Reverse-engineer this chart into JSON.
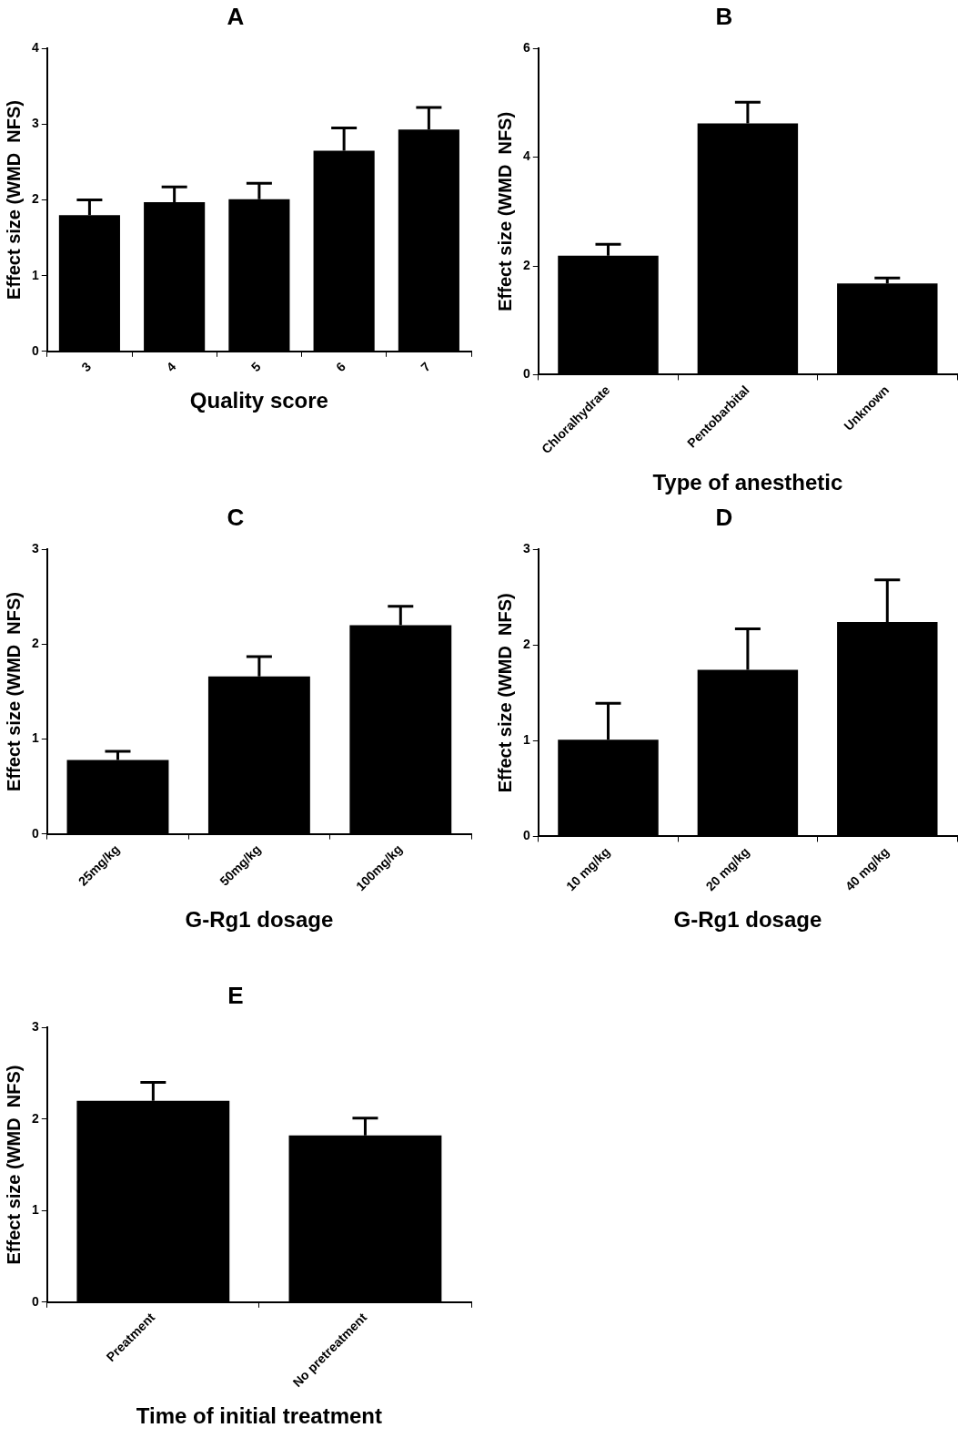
{
  "chart_data": [
    {
      "type": "bar",
      "title": "A",
      "xlabel": "Quality score",
      "ylabel": "Effect size (WMD  NFS)",
      "categories": [
        "3",
        "4",
        "5",
        "6",
        "7"
      ],
      "values": [
        1.8,
        1.97,
        2.01,
        2.65,
        2.93
      ],
      "errors": [
        [
          1.8,
          2.0
        ],
        [
          1.97,
          2.17
        ],
        [
          2.01,
          2.22
        ],
        [
          2.65,
          2.95
        ],
        [
          2.93,
          3.22
        ]
      ],
      "color": "#000000",
      "ylim": [
        0,
        4
      ],
      "yticks": [
        0,
        1,
        2,
        3,
        4
      ],
      "grid": false
    },
    {
      "type": "bar",
      "title": "B",
      "xlabel": "Type of anesthetic",
      "ylabel": "Effect size (WMD  NFS)",
      "categories": [
        "Chloralhydrate",
        "Pentobarbital",
        "Unknown"
      ],
      "values": [
        2.19,
        4.62,
        1.68
      ],
      "errors": [
        [
          2.19,
          2.4
        ],
        [
          4.62,
          5.01
        ],
        [
          1.68,
          1.78
        ]
      ],
      "color": "#000000",
      "ylim": [
        0,
        6
      ],
      "yticks": [
        0,
        2,
        4,
        6
      ],
      "grid": false
    },
    {
      "type": "bar",
      "title": "C",
      "xlabel": "G-Rg1 dosage",
      "ylabel": "Effect size (WMD  NFS)",
      "categories": [
        "25mg/kg",
        "50mg/kg",
        "100mg/kg"
      ],
      "values": [
        0.78,
        1.66,
        2.2
      ],
      "errors": [
        [
          0.78,
          0.87
        ],
        [
          1.66,
          1.87
        ],
        [
          2.2,
          2.4
        ]
      ],
      "color": "#000000",
      "ylim": [
        0,
        3
      ],
      "yticks": [
        0,
        1,
        2,
        3
      ],
      "grid": false
    },
    {
      "type": "bar",
      "title": "D",
      "xlabel": "G-Rg1 dosage",
      "ylabel": "Effect size (WMD  NFS)",
      "categories": [
        "10 mg/kg",
        "20 mg/kg",
        "40 mg/kg"
      ],
      "values": [
        1.01,
        1.74,
        2.24
      ],
      "errors": [
        [
          1.01,
          1.39
        ],
        [
          1.74,
          2.17
        ],
        [
          2.24,
          2.68
        ]
      ],
      "color": "#000000",
      "ylim": [
        0,
        3
      ],
      "yticks": [
        0,
        1,
        2,
        3
      ],
      "grid": false
    },
    {
      "type": "bar",
      "title": "E",
      "xlabel": "Time of initial treatment",
      "ylabel": "Effect size (WMD  NFS)",
      "categories": [
        "Preatment",
        "No pretreatment"
      ],
      "values": [
        2.2,
        1.82
      ],
      "errors": [
        [
          2.2,
          2.4
        ],
        [
          1.82,
          2.01
        ]
      ],
      "color": "#000000",
      "ylim": [
        0,
        3
      ],
      "yticks": [
        0,
        1,
        2,
        3
      ],
      "grid": false
    }
  ]
}
